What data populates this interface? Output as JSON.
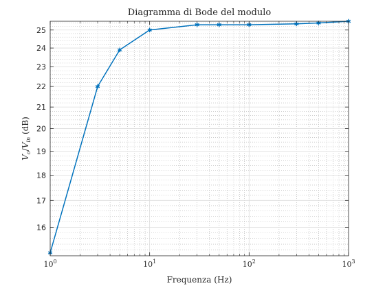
{
  "chart_data": {
    "type": "line",
    "title": "Diagramma di Bode del modulo",
    "xlabel": "Frequenza (Hz)",
    "ylabel": "V_o/V_in (dB)",
    "xscale": "log",
    "yscale": "log",
    "xlim": [
      1,
      1000
    ],
    "ylim": [
      15,
      25.5
    ],
    "grid": "on (major and minor)",
    "x_ticks": [
      {
        "value": 1,
        "base": "10",
        "exp": "0"
      },
      {
        "value": 10,
        "base": "10",
        "exp": "1"
      },
      {
        "value": 100,
        "base": "10",
        "exp": "2"
      },
      {
        "value": 1000,
        "base": "10",
        "exp": "3"
      }
    ],
    "y_ticks": [
      16,
      17,
      18,
      19,
      20,
      21,
      22,
      23,
      24,
      25
    ],
    "series": [
      {
        "color": "#0072BD",
        "marker": "asterisk",
        "x": [
          1,
          3,
          5,
          10,
          30,
          50,
          100,
          300,
          500,
          1000
        ],
        "y": [
          15.1,
          22.0,
          23.9,
          25.0,
          25.3,
          25.3,
          25.3,
          25.35,
          25.4,
          25.5
        ]
      }
    ]
  }
}
